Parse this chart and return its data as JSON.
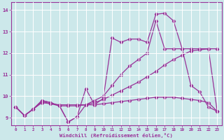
{
  "x": [
    0,
    1,
    2,
    3,
    4,
    5,
    6,
    7,
    8,
    9,
    10,
    11,
    12,
    13,
    14,
    15,
    16,
    17,
    18,
    19,
    20,
    21,
    22,
    23
  ],
  "line_main": [
    9.5,
    9.1,
    9.4,
    9.8,
    9.7,
    9.55,
    8.8,
    9.05,
    10.35,
    9.6,
    9.9,
    12.7,
    12.5,
    12.65,
    12.65,
    12.5,
    13.8,
    13.85,
    13.5,
    12.2,
    10.5,
    10.2,
    9.5,
    9.3
  ],
  "line_diag1": [
    9.5,
    9.1,
    9.4,
    9.8,
    9.7,
    9.55,
    8.8,
    9.05,
    9.6,
    9.8,
    10.0,
    10.5,
    11.0,
    11.4,
    11.7,
    12.0,
    13.5,
    12.2,
    12.2,
    12.2,
    12.2,
    12.2,
    12.2,
    9.3
  ],
  "line_diag2": [
    9.5,
    9.1,
    9.4,
    9.75,
    9.65,
    9.55,
    9.55,
    9.55,
    9.6,
    9.7,
    9.85,
    10.05,
    10.25,
    10.45,
    10.65,
    10.9,
    11.15,
    11.45,
    11.7,
    11.9,
    12.1,
    12.15,
    12.2,
    12.2
  ],
  "line_flat": [
    9.5,
    9.1,
    9.4,
    9.7,
    9.65,
    9.6,
    9.6,
    9.6,
    9.6,
    9.6,
    9.65,
    9.7,
    9.75,
    9.8,
    9.85,
    9.9,
    9.95,
    9.95,
    9.95,
    9.9,
    9.85,
    9.8,
    9.7,
    9.3
  ],
  "background_color": "#cce8ea",
  "line_color": "#993399",
  "grid_color": "#ffffff",
  "xlabel": "Windchill (Refroidissement éolien,°C)",
  "yticks": [
    9,
    10,
    11,
    12,
    13,
    14
  ],
  "xticks": [
    0,
    1,
    2,
    3,
    4,
    5,
    6,
    7,
    8,
    9,
    10,
    11,
    12,
    13,
    14,
    15,
    16,
    17,
    18,
    19,
    20,
    21,
    22,
    23
  ],
  "xlim": [
    -0.5,
    23.5
  ],
  "ylim": [
    8.65,
    14.35
  ]
}
